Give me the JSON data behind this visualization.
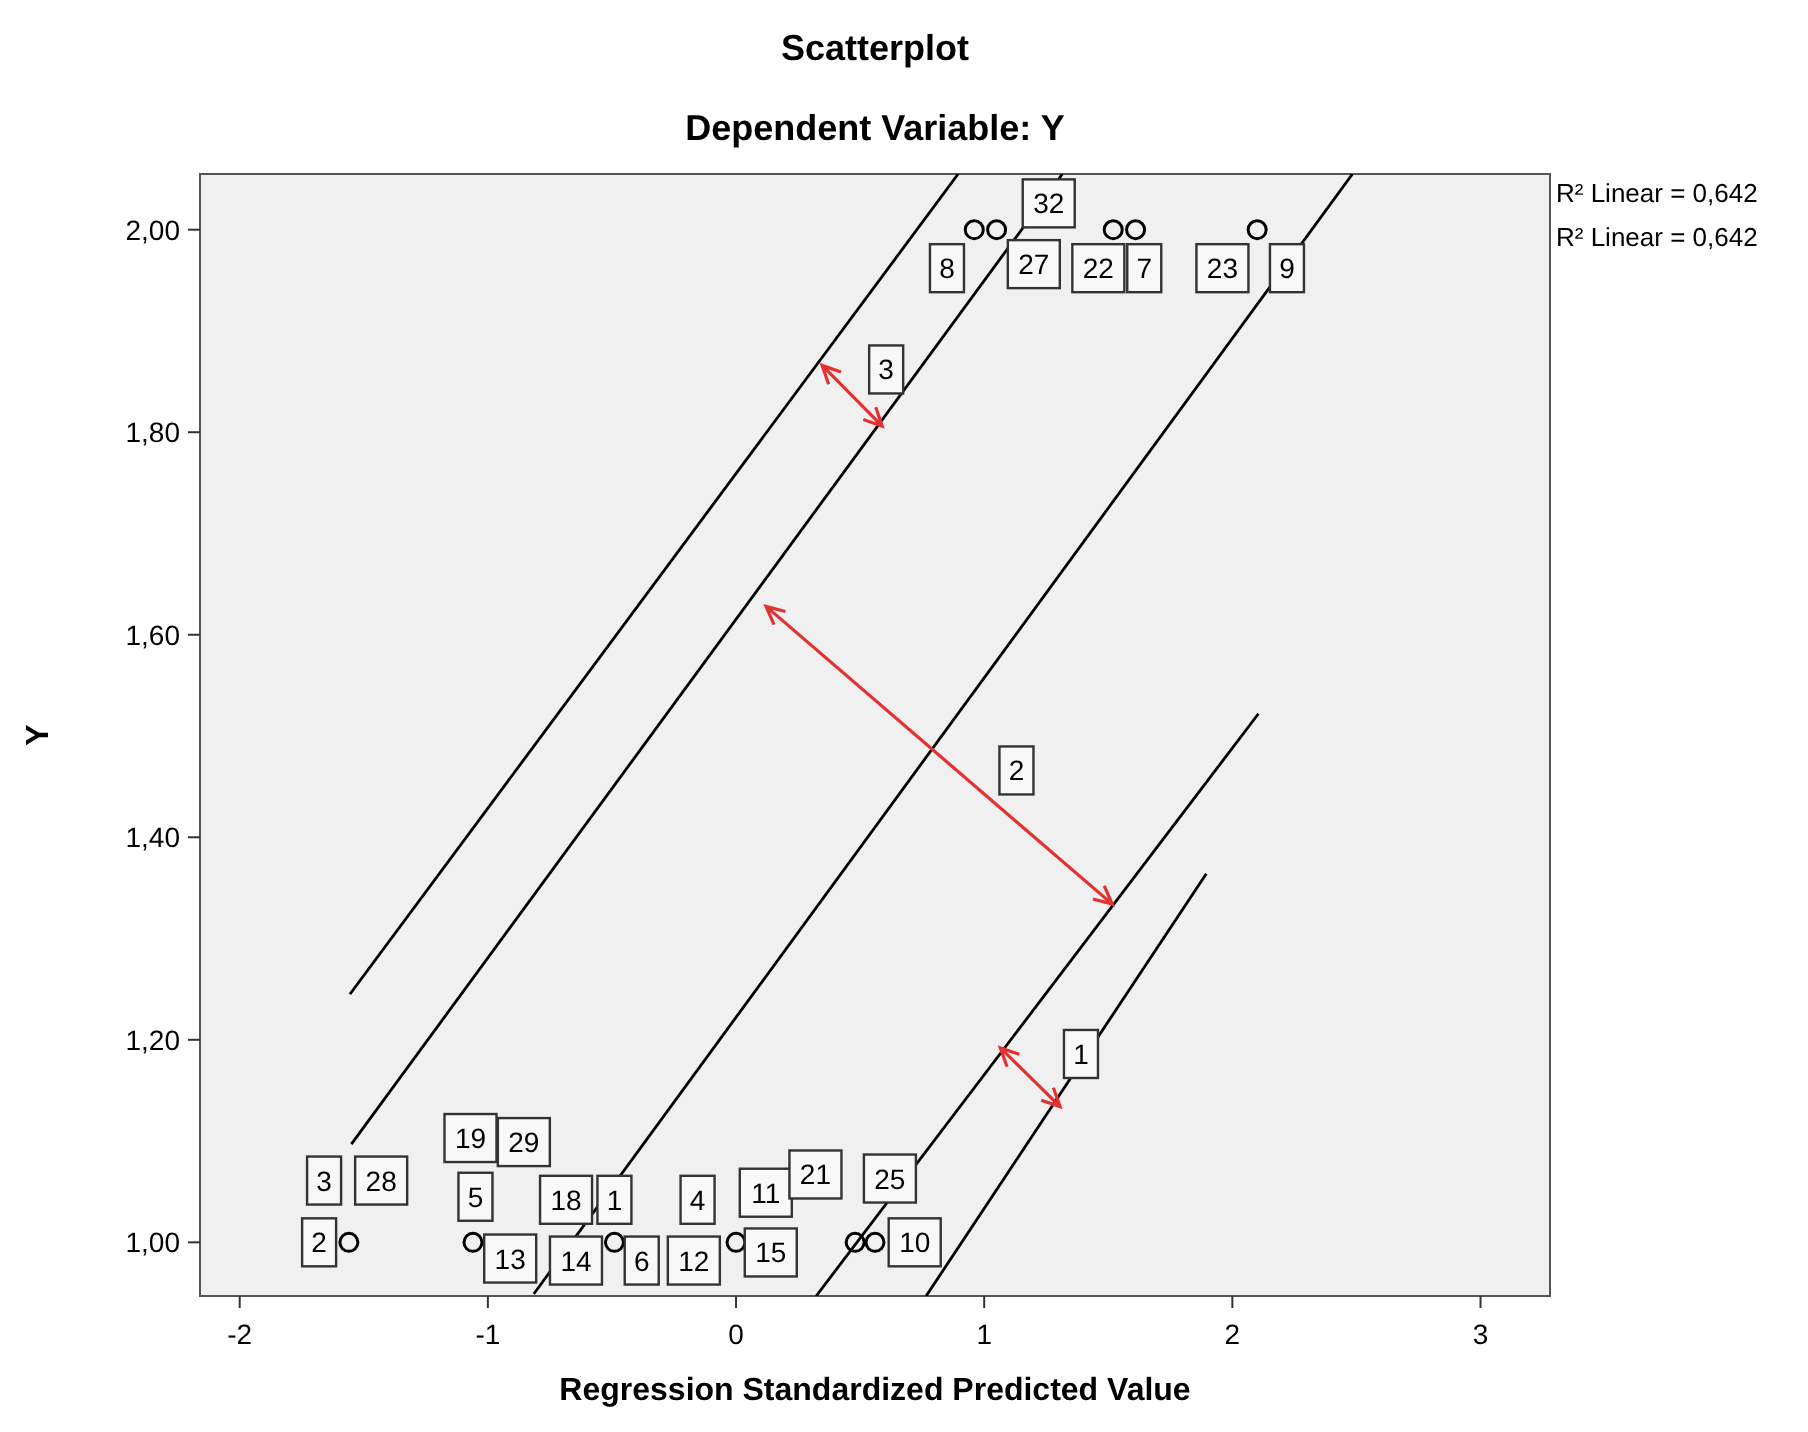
{
  "chart_data": {
    "type": "scatter",
    "title": "Scatterplot",
    "subtitle": "Dependent Variable: Y",
    "xlabel": "Regression Standardized Predicted Value",
    "ylabel": "Y",
    "xlim": [
      -2.16,
      3.28
    ],
    "xticks": [
      -2,
      -1,
      0,
      1,
      2,
      3
    ],
    "ylim": [
      0.947,
      2.055
    ],
    "yticks": [
      {
        "value": 1,
        "label": "1,00"
      },
      {
        "value": 1.2,
        "label": "1,20"
      },
      {
        "value": 1.4,
        "label": "1,40"
      },
      {
        "value": 1.6,
        "label": "1,60"
      },
      {
        "value": 1.8,
        "label": "1,80"
      },
      {
        "value": 2,
        "label": "2,00"
      }
    ],
    "grid": false,
    "series": [
      {
        "type": "scatter",
        "color": "#000000",
        "marker": "circle",
        "x": [
          -1.56,
          -1.06,
          -0.49,
          0,
          0.48,
          0.56,
          0.96,
          1.05,
          1.52,
          1.61,
          2.1
        ],
        "values": [
          1,
          1,
          1,
          1,
          1,
          1,
          2,
          2,
          2,
          2,
          2
        ]
      },
      {
        "type": "line",
        "color": "#000000",
        "marker": "none",
        "x": [
          -1.556,
          0.895
        ],
        "values": [
          1.245,
          2.055
        ]
      },
      {
        "type": "line",
        "color": "#000000",
        "marker": "none",
        "x": [
          -1.55,
          1.315
        ],
        "values": [
          1.097,
          2.055
        ]
      },
      {
        "type": "line",
        "color": "#000000",
        "marker": "none",
        "x": [
          -0.815,
          2.484
        ],
        "values": [
          0.949,
          2.055
        ]
      },
      {
        "type": "line",
        "color": "#000000",
        "marker": "none",
        "x": [
          0.323,
          2.105
        ],
        "values": [
          0.947,
          1.522
        ]
      },
      {
        "type": "line",
        "color": "#000000",
        "marker": "none",
        "x": [
          0.766,
          1.895
        ],
        "values": [
          0.947,
          1.364
        ]
      }
    ],
    "annotations": [
      "R² Linear = 0,642",
      "R² Linear = 0,642",
      {
        "text": "3",
        "x": -1.66,
        "y": 1.061
      },
      {
        "text": "2",
        "x": -1.68,
        "y": 1.0
      },
      {
        "text": "28",
        "x": -1.43,
        "y": 1.061
      },
      {
        "text": "19",
        "x": -1.07,
        "y": 1.103
      },
      {
        "text": "29",
        "x": -0.855,
        "y": 1.099
      },
      {
        "text": "5",
        "x": -1.05,
        "y": 1.045
      },
      {
        "text": "13",
        "x": -0.91,
        "y": 0.984
      },
      {
        "text": "18",
        "x": -0.685,
        "y": 1.042
      },
      {
        "text": "1",
        "x": -0.49,
        "y": 1.042
      },
      {
        "text": "14",
        "x": -0.645,
        "y": 0.982
      },
      {
        "text": "6",
        "x": -0.38,
        "y": 0.982
      },
      {
        "text": "12",
        "x": -0.17,
        "y": 0.982
      },
      {
        "text": "4",
        "x": -0.155,
        "y": 1.042
      },
      {
        "text": "11",
        "x": 0.12,
        "y": 1.049
      },
      {
        "text": "15",
        "x": 0.14,
        "y": 0.99
      },
      {
        "text": "21",
        "x": 0.32,
        "y": 1.067
      },
      {
        "text": "25",
        "x": 0.62,
        "y": 1.063
      },
      {
        "text": "10",
        "x": 0.72,
        "y": 1.0
      },
      {
        "text": "32",
        "x": 1.26,
        "y": 2.026
      },
      {
        "text": "8",
        "x": 0.85,
        "y": 1.962
      },
      {
        "text": "27",
        "x": 1.2,
        "y": 1.966
      },
      {
        "text": "22",
        "x": 1.46,
        "y": 1.962
      },
      {
        "text": "7",
        "x": 1.645,
        "y": 1.962
      },
      {
        "text": "23",
        "x": 1.96,
        "y": 1.962
      },
      {
        "text": "9",
        "x": 2.22,
        "y": 1.962
      },
      {
        "text": "3",
        "x": 0.605,
        "y": 1.862
      },
      {
        "text": "2",
        "x": 1.13,
        "y": 1.466
      },
      {
        "text": "1",
        "x": 1.39,
        "y": 1.186
      }
    ]
  }
}
